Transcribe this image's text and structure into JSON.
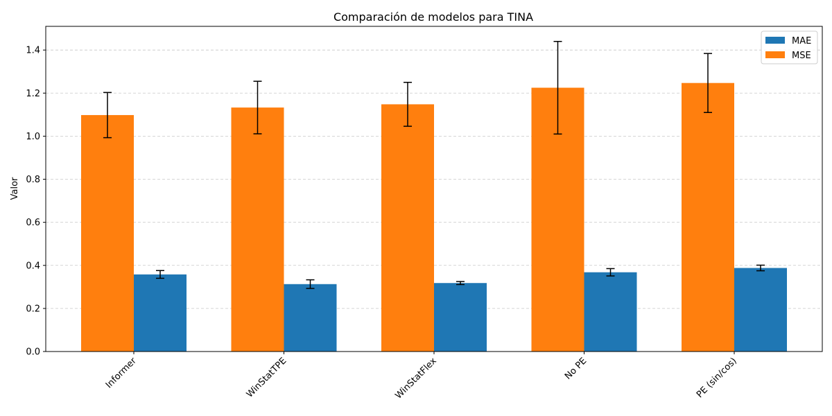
{
  "chart_data": {
    "type": "bar",
    "title": "Comparación de modelos para TINA",
    "xlabel": "",
    "ylabel": "Valor",
    "categories": [
      "Informer",
      "WinStatTPE",
      "WinStatFlex",
      "No PE",
      "PE (sin/cos)"
    ],
    "series": [
      {
        "name": "MSE",
        "color": "#ff7f0e",
        "values": [
          1.098,
          1.133,
          1.148,
          1.225,
          1.247
        ],
        "errors": [
          0.105,
          0.122,
          0.102,
          0.215,
          0.137
        ]
      },
      {
        "name": "MAE",
        "color": "#1f77b4",
        "values": [
          0.358,
          0.313,
          0.318,
          0.368,
          0.388
        ],
        "errors": [
          0.018,
          0.02,
          0.007,
          0.017,
          0.013
        ]
      }
    ],
    "legend": {
      "items": [
        "MAE",
        "MSE"
      ],
      "colors": [
        "#1f77b4",
        "#ff7f0e"
      ],
      "placement": "top-right"
    },
    "ylim": [
      0,
      1.51
    ],
    "yticks": [
      "0.0",
      "0.2",
      "0.4",
      "0.6",
      "0.8",
      "1.0",
      "1.2",
      "1.4"
    ],
    "grid": "y-dashed"
  }
}
